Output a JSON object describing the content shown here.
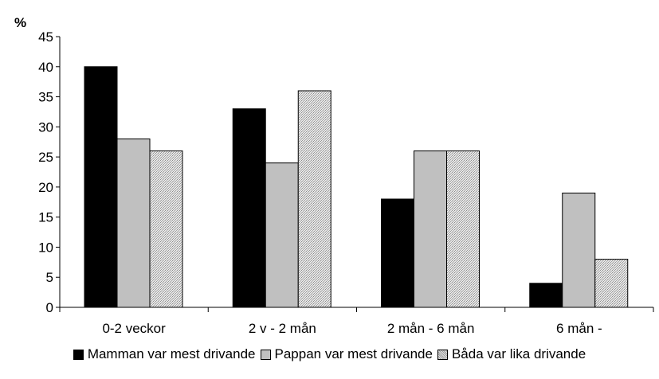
{
  "chart_data": {
    "type": "bar",
    "unit_label": "%",
    "categories": [
      "0-2 veckor",
      "2 v - 2 mån",
      "2 mån - 6 mån",
      "6 mån -"
    ],
    "series": [
      {
        "name": "Mamman var mest drivande",
        "values": [
          40,
          33,
          18,
          4
        ],
        "color": "#000000",
        "pattern": "solid"
      },
      {
        "name": "Pappan var mest drivande",
        "values": [
          28,
          24,
          26,
          19
        ],
        "color": "#c0c0c0",
        "pattern": "solid"
      },
      {
        "name": "Båda var lika drivande",
        "values": [
          26,
          36,
          26,
          8
        ],
        "color": "#cfcfcf",
        "pattern": "dotted"
      }
    ],
    "ylim": [
      0,
      45
    ],
    "yticks": [
      0,
      5,
      10,
      15,
      20,
      25,
      30,
      35,
      40,
      45
    ],
    "grid": false,
    "legend": "bottom"
  }
}
